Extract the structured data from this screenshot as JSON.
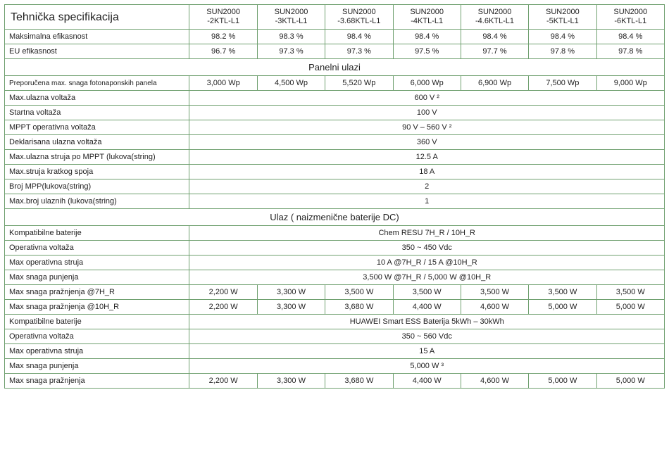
{
  "table": {
    "border_color": "#6fa06f",
    "title": "Tehnička specifikacija",
    "models": [
      "SUN2000\n-2KTL-L1",
      "SUN2000\n-3KTL-L1",
      "SUN2000\n-3.68KTL-L1",
      "SUN2000\n-4KTL-L1",
      "SUN2000\n-4.6KTL-L1",
      "SUN2000\n-5KTL-L1",
      "SUN2000\n-6KTL-L1"
    ],
    "rows": [
      {
        "label": "Maksimalna efikasnost",
        "values": [
          "98.2 %",
          "98.3 %",
          "98.4 %",
          "98.4 %",
          "98.4 %",
          "98.4 %",
          "98.4 %"
        ]
      },
      {
        "label": "EU efikasnost",
        "values": [
          "96.7 %",
          "97.3 %",
          "97.3 %",
          "97.5 %",
          "97.7 %",
          "97.8 %",
          "97.8 %"
        ]
      },
      {
        "section": "Panelni ulazi"
      },
      {
        "label": "Preporučena max. snaga fotonaponskih panela",
        "small": true,
        "values": [
          "3,000 Wp",
          "4,500 Wp",
          "5,520 Wp",
          "6,000 Wp",
          "6,900 Wp",
          "7,500 Wp",
          "9,000 Wp"
        ]
      },
      {
        "label": "Max.ulazna voltaža",
        "merged": "600 V ²"
      },
      {
        "label": "Startna voltaža",
        "merged": "100 V"
      },
      {
        "label": "MPPT operativna voltaža",
        "merged": "90 V – 560 V ²"
      },
      {
        "label": "Deklarisana ulazna voltaža",
        "merged": "360 V"
      },
      {
        "label": "Max.ulazna struja po MPPT (lukova(string)",
        "merged": "12.5 A"
      },
      {
        "label": "Max.struja kratkog spoja",
        "merged": "18 A"
      },
      {
        "label": "Broj MPP(lukova(string)",
        "merged": "2"
      },
      {
        "label": "Max.broj ulaznih (lukova(string)",
        "merged": "1"
      },
      {
        "section": "Ulaz ( naizmenične baterije DC)"
      },
      {
        "label": "Kompatibilne baterije",
        "merged": "Chem RESU 7H_R / 10H_R"
      },
      {
        "label": "Operativna voltaža",
        "merged": "350 ~ 450 Vdc"
      },
      {
        "label": "Max operativna struja",
        "merged": "10 A @7H_R  / 15 A @10H_R"
      },
      {
        "label": "Max snaga punjenja",
        "merged": "3,500 W @7H_R / 5,000 W @10H_R"
      },
      {
        "label": "Max  snaga pražnjenja @7H_R",
        "values": [
          "2,200 W",
          "3,300 W",
          "3,500 W",
          "3,500 W",
          "3,500 W",
          "3,500 W",
          "3,500 W"
        ]
      },
      {
        "label": "Max  snaga pražnjenja @10H_R",
        "values": [
          "2,200 W",
          "3,300 W",
          "3,680 W",
          "4,400 W",
          "4,600 W",
          "5,000 W",
          "5,000 W"
        ]
      },
      {
        "label": "Kompatibilne baterije",
        "merged": "HUAWEI Smart ESS Baterija 5kWh – 30kWh"
      },
      {
        "label": "Operativna voltaža",
        "merged": "350 ~ 560 Vdc"
      },
      {
        "label": "Max operativna struja",
        "merged": "15 A"
      },
      {
        "label": "Max snaga punjenja",
        "merged": "5,000 W ³"
      },
      {
        "label": "Max  snaga pražnjenja",
        "values": [
          "2,200 W",
          "3,300 W",
          "3,680 W",
          "4,400 W",
          "4,600 W",
          "5,000 W",
          "5,000 W"
        ]
      }
    ]
  }
}
